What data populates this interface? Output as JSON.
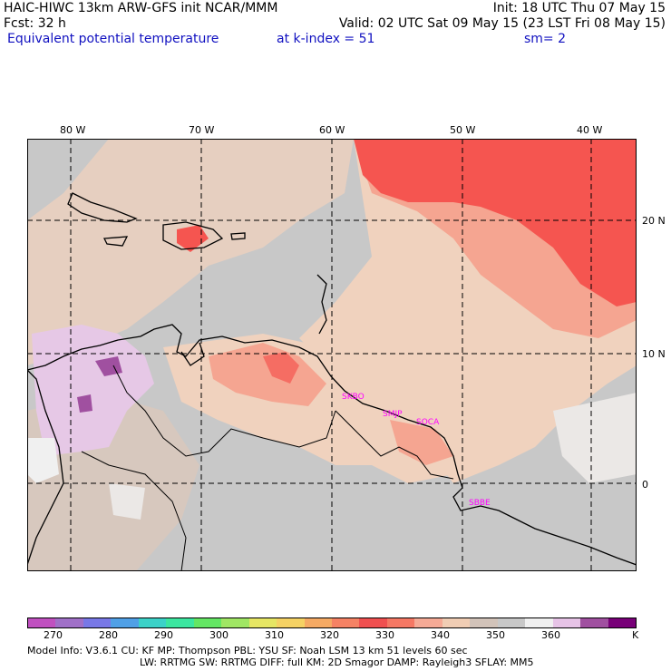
{
  "header": {
    "model_line": "HAIC-HIWC 13km ARW-GFS init   NCAR/MMM",
    "init_line": "Init: 18 UTC Thu 07 May 15",
    "fcst_line": "Fcst:   32 h",
    "valid_line": "Valid: 02 UTC Sat 09 May 15 (23 LST Fri 08 May 15)",
    "field_line": "Equivalent potential temperature",
    "level_line": "at k-index =  51",
    "sm_line": "sm= 2"
  },
  "map": {
    "lon_labels": [
      "80 W",
      "70 W",
      "60 W",
      "50 W",
      "40 W"
    ],
    "lat_labels": [
      "20 N",
      "10 N",
      "0"
    ],
    "stations": [
      "SKBO",
      "SMJP",
      "SOCA",
      "SBBE"
    ],
    "colors": {
      "bg": "#c8c8c8",
      "gray": "#bebebe",
      "tan": "#f0d2be",
      "salmon": "#f5a591",
      "red": "#f55550",
      "lightpurple": "#e6c8e6",
      "purple": "#a050a0",
      "white": "#f0f0f0",
      "station": "#ff00ff"
    }
  },
  "colorbar": {
    "unit": "K",
    "ticks": [
      "270",
      "280",
      "290",
      "300",
      "310",
      "320",
      "330",
      "340",
      "350",
      "360"
    ],
    "colors": [
      "#c050c0",
      "#a070c8",
      "#7878e6",
      "#50a0e6",
      "#3cd2c8",
      "#3ce6a0",
      "#64e664",
      "#a0e664",
      "#e6e664",
      "#f5d264",
      "#f5aa64",
      "#f58264",
      "#f05050",
      "#f57864",
      "#f5aa96",
      "#f0cdb4",
      "#d2c3b9",
      "#c8c8c8",
      "#f0f0f0",
      "#e6c3e6",
      "#a050a0",
      "#780078"
    ]
  },
  "footer": {
    "line1": "Model Info: V3.6.1     CU: KF       MP: Thompson     PBL: YSU      SF: Noah LSM      13 km    51 levels    60 sec",
    "line2": "LW: RRTMG    SW: RRTMG   DIFF: full    KM: 2D Smagor DAMP: Rayleigh3   SFLAY: MM5"
  }
}
